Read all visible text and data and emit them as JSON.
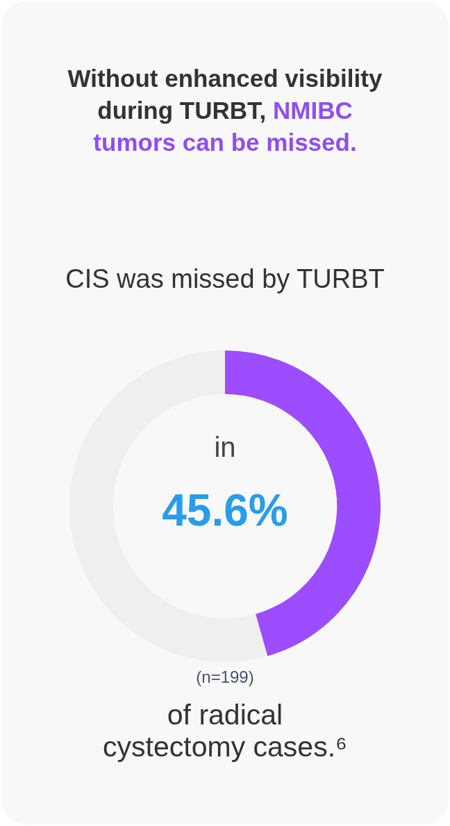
{
  "chart_data": {
    "type": "donut",
    "title": "Without enhanced visibility during TURBT, NMIBC tumors can be missed.",
    "subtitle": "CIS was missed by TURBT",
    "categories": [
      null,
      null
    ],
    "values": [
      45.6,
      54.4
    ],
    "colors": [
      "#9b4dff",
      "#efefef"
    ],
    "annotations": [
      "in",
      "45.6%",
      "(n=199)",
      "of radical cystectomy cases.⁶"
    ],
    "legend": false
  }
}
